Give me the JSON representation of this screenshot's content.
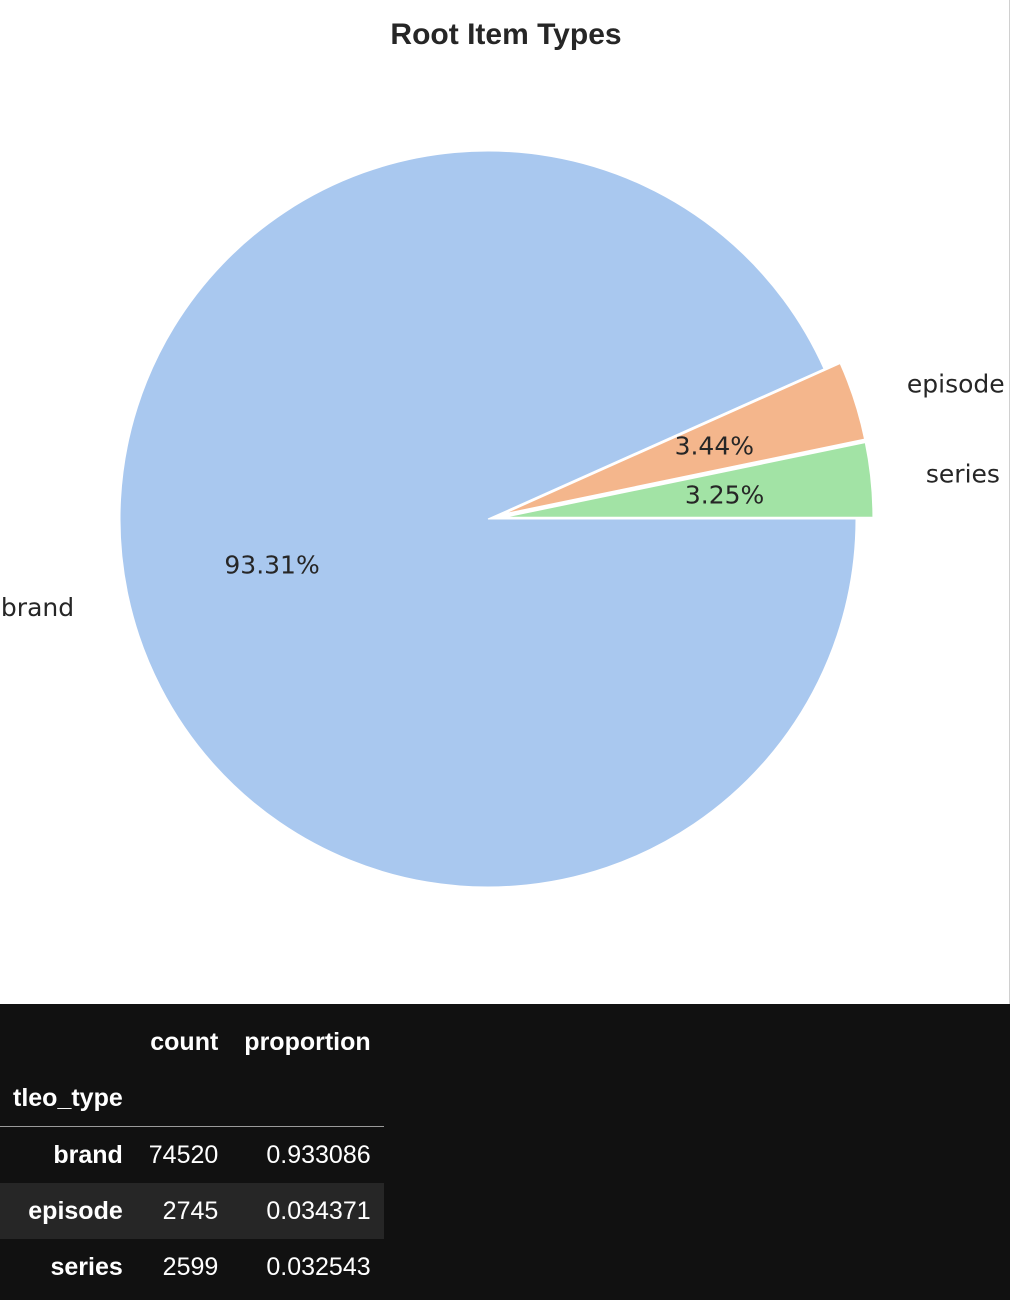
{
  "chart_data": {
    "type": "pie",
    "title": "Root Item Types",
    "slices": [
      {
        "label": "brand",
        "value": 93.31,
        "pct_label": "93.31%",
        "color": "#a9c8ef",
        "exploded": false
      },
      {
        "label": "episode",
        "value": 3.44,
        "pct_label": "3.44%",
        "color": "#f4b68c",
        "exploded": true
      },
      {
        "label": "series",
        "value": 3.25,
        "pct_label": "3.25%",
        "color": "#a2e3a5",
        "exploded": true
      }
    ],
    "direction": "clockwise",
    "start": "east"
  },
  "table": {
    "columns": [
      "count",
      "proportion"
    ],
    "index_name": "tleo_type",
    "rows": [
      {
        "name": "brand",
        "count": "74520",
        "proportion": "0.933086"
      },
      {
        "name": "episode",
        "count": "2745",
        "proportion": "0.034371"
      },
      {
        "name": "series",
        "count": "2599",
        "proportion": "0.032543"
      }
    ]
  }
}
